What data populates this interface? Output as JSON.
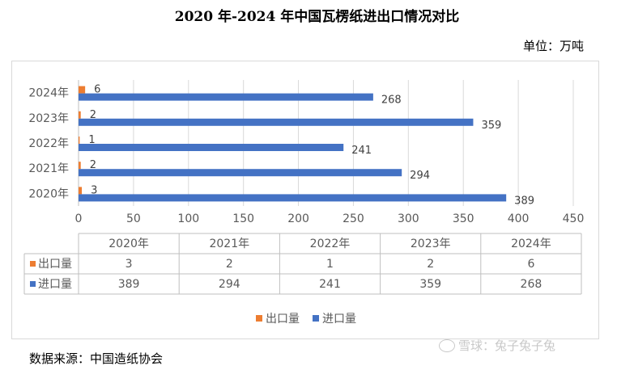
{
  "title": "2020 年-2024 年中国瓦楞纸进出口情况对比",
  "unit": "单位：万吨",
  "source": "数据来源：中国造纸协会",
  "watermark": "雪球：兔子兔子兔",
  "colors": {
    "export": "#ED7D31",
    "import": "#4472C4"
  },
  "chart_data": {
    "type": "bar",
    "orientation": "horizontal",
    "categories": [
      "2020年",
      "2021年",
      "2022年",
      "2023年",
      "2024年"
    ],
    "series": [
      {
        "name": "出口量",
        "values": [
          3,
          2,
          1,
          2,
          6
        ]
      },
      {
        "name": "进口量",
        "values": [
          389,
          294,
          241,
          359,
          268
        ]
      }
    ],
    "xticks": [
      0,
      50,
      100,
      150,
      200,
      250,
      300,
      350,
      400,
      450
    ],
    "xlim": [
      0,
      450
    ],
    "grid": true,
    "legend_position": "bottom",
    "data_table": true
  }
}
